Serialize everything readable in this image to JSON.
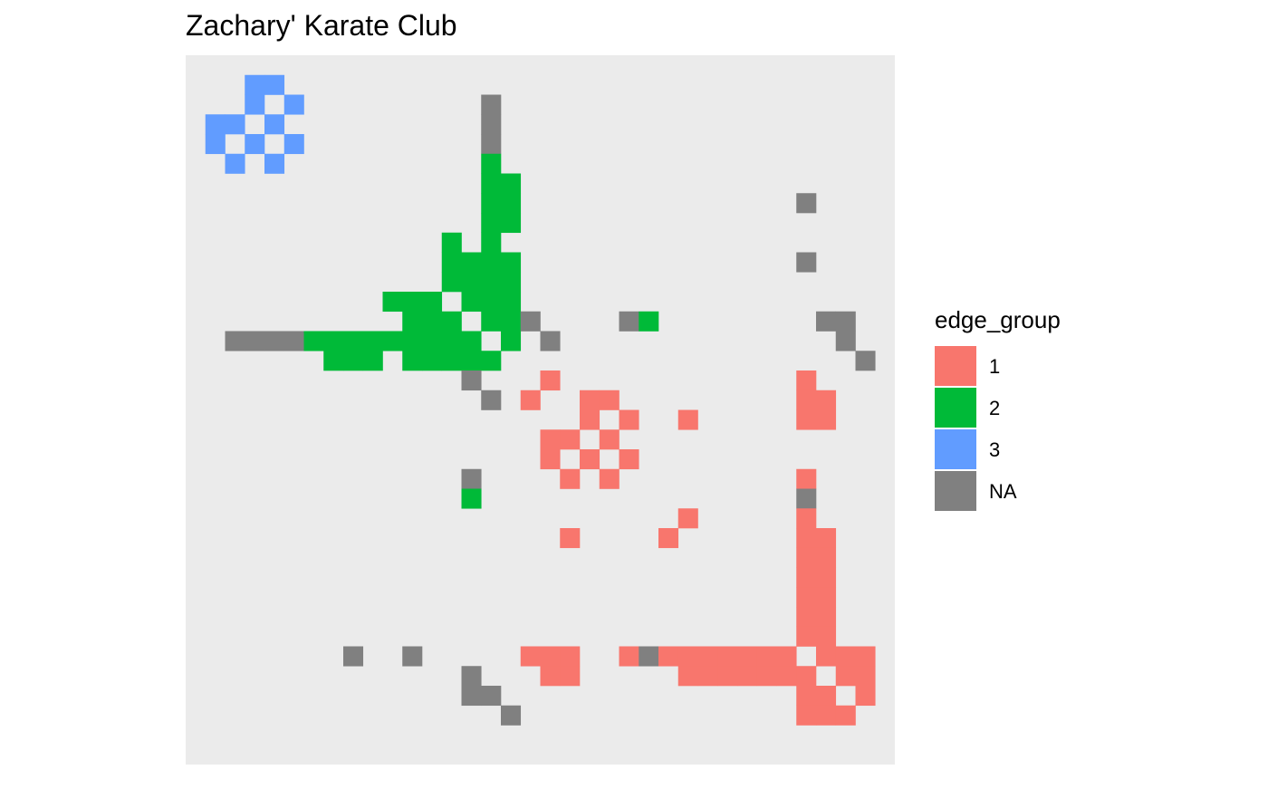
{
  "chart_data": {
    "type": "heatmap",
    "title": "Zachary' Karate Club",
    "xlabel": "",
    "ylabel": "",
    "grid": false,
    "n": 36,
    "legend": {
      "title": "edge_group",
      "position": "right",
      "entries": [
        {
          "label": "1",
          "color": "#F8766D"
        },
        {
          "label": "2",
          "color": "#00BA38"
        },
        {
          "label": "3",
          "color": "#619CFF"
        },
        {
          "label": "NA",
          "color": "#808080"
        }
      ]
    },
    "colors": {
      "panel": "#EBEBEB",
      "1": "#F8766D",
      "2": "#00BA38",
      "3": "#619CFF",
      "NA": "#808080"
    },
    "rows": [
      {
        "row": 1,
        "runs": [
          [
            3,
            4,
            "3"
          ]
        ]
      },
      {
        "row": 2,
        "runs": [
          [
            3,
            3,
            "3"
          ],
          [
            5,
            5,
            "3"
          ],
          [
            15,
            15,
            "NA"
          ]
        ]
      },
      {
        "row": 3,
        "runs": [
          [
            1,
            2,
            "3"
          ],
          [
            4,
            4,
            "3"
          ],
          [
            15,
            15,
            "NA"
          ]
        ]
      },
      {
        "row": 4,
        "runs": [
          [
            1,
            1,
            "3"
          ],
          [
            3,
            3,
            "3"
          ],
          [
            5,
            5,
            "3"
          ],
          [
            15,
            15,
            "NA"
          ]
        ]
      },
      {
        "row": 5,
        "runs": [
          [
            2,
            2,
            "3"
          ],
          [
            4,
            4,
            "3"
          ],
          [
            15,
            15,
            "2"
          ]
        ]
      },
      {
        "row": 6,
        "runs": [
          [
            15,
            16,
            "2"
          ]
        ]
      },
      {
        "row": 7,
        "runs": [
          [
            15,
            16,
            "2"
          ],
          [
            31,
            31,
            "NA"
          ]
        ]
      },
      {
        "row": 8,
        "runs": [
          [
            15,
            16,
            "2"
          ]
        ]
      },
      {
        "row": 9,
        "runs": [
          [
            13,
            13,
            "2"
          ],
          [
            15,
            15,
            "2"
          ]
        ]
      },
      {
        "row": 10,
        "runs": [
          [
            13,
            16,
            "2"
          ],
          [
            31,
            31,
            "NA"
          ]
        ]
      },
      {
        "row": 11,
        "runs": [
          [
            13,
            16,
            "2"
          ]
        ]
      },
      {
        "row": 12,
        "runs": [
          [
            10,
            12,
            "2"
          ],
          [
            14,
            16,
            "2"
          ]
        ]
      },
      {
        "row": 13,
        "runs": [
          [
            11,
            13,
            "2"
          ],
          [
            15,
            16,
            "2"
          ],
          [
            17,
            17,
            "NA"
          ],
          [
            22,
            22,
            "NA"
          ],
          [
            23,
            23,
            "2"
          ],
          [
            32,
            33,
            "NA"
          ]
        ]
      },
      {
        "row": 14,
        "runs": [
          [
            2,
            5,
            "NA"
          ],
          [
            6,
            14,
            "2"
          ],
          [
            16,
            16,
            "2"
          ],
          [
            18,
            18,
            "NA"
          ],
          [
            33,
            33,
            "NA"
          ]
        ]
      },
      {
        "row": 15,
        "runs": [
          [
            7,
            9,
            "2"
          ],
          [
            11,
            15,
            "2"
          ],
          [
            34,
            34,
            "NA"
          ]
        ]
      },
      {
        "row": 16,
        "runs": [
          [
            14,
            14,
            "NA"
          ],
          [
            18,
            18,
            "1"
          ],
          [
            31,
            31,
            "1"
          ]
        ]
      },
      {
        "row": 17,
        "runs": [
          [
            15,
            15,
            "NA"
          ],
          [
            17,
            17,
            "1"
          ],
          [
            20,
            21,
            "1"
          ],
          [
            31,
            32,
            "1"
          ]
        ]
      },
      {
        "row": 18,
        "runs": [
          [
            20,
            20,
            "1"
          ],
          [
            22,
            22,
            "1"
          ],
          [
            25,
            25,
            "1"
          ],
          [
            31,
            32,
            "1"
          ]
        ]
      },
      {
        "row": 19,
        "runs": [
          [
            18,
            19,
            "1"
          ],
          [
            21,
            21,
            "1"
          ]
        ]
      },
      {
        "row": 20,
        "runs": [
          [
            18,
            18,
            "1"
          ],
          [
            20,
            20,
            "1"
          ],
          [
            22,
            22,
            "1"
          ]
        ]
      },
      {
        "row": 21,
        "runs": [
          [
            14,
            14,
            "NA"
          ],
          [
            19,
            19,
            "1"
          ],
          [
            21,
            21,
            "1"
          ],
          [
            31,
            31,
            "1"
          ]
        ]
      },
      {
        "row": 22,
        "runs": [
          [
            14,
            14,
            "2"
          ],
          [
            31,
            31,
            "NA"
          ]
        ]
      },
      {
        "row": 23,
        "runs": [
          [
            25,
            25,
            "1"
          ],
          [
            31,
            31,
            "1"
          ]
        ]
      },
      {
        "row": 24,
        "runs": [
          [
            19,
            19,
            "1"
          ],
          [
            24,
            24,
            "1"
          ],
          [
            31,
            32,
            "1"
          ]
        ]
      },
      {
        "row": 25,
        "runs": [
          [
            31,
            32,
            "1"
          ]
        ]
      },
      {
        "row": 26,
        "runs": [
          [
            31,
            32,
            "1"
          ]
        ]
      },
      {
        "row": 27,
        "runs": [
          [
            31,
            32,
            "1"
          ]
        ]
      },
      {
        "row": 28,
        "runs": [
          [
            31,
            32,
            "1"
          ]
        ]
      },
      {
        "row": 29,
        "runs": [
          [
            31,
            32,
            "1"
          ]
        ]
      },
      {
        "row": 30,
        "runs": [
          [
            8,
            8,
            "NA"
          ],
          [
            11,
            11,
            "NA"
          ],
          [
            17,
            19,
            "1"
          ],
          [
            22,
            22,
            "1"
          ],
          [
            23,
            23,
            "NA"
          ],
          [
            24,
            30,
            "1"
          ],
          [
            32,
            34,
            "1"
          ]
        ]
      },
      {
        "row": 31,
        "runs": [
          [
            14,
            14,
            "NA"
          ],
          [
            18,
            19,
            "1"
          ],
          [
            25,
            31,
            "1"
          ],
          [
            33,
            34,
            "1"
          ]
        ]
      },
      {
        "row": 32,
        "runs": [
          [
            14,
            15,
            "NA"
          ],
          [
            31,
            32,
            "1"
          ],
          [
            34,
            34,
            "1"
          ]
        ]
      },
      {
        "row": 33,
        "runs": [
          [
            16,
            16,
            "NA"
          ],
          [
            31,
            33,
            "1"
          ]
        ]
      }
    ]
  }
}
